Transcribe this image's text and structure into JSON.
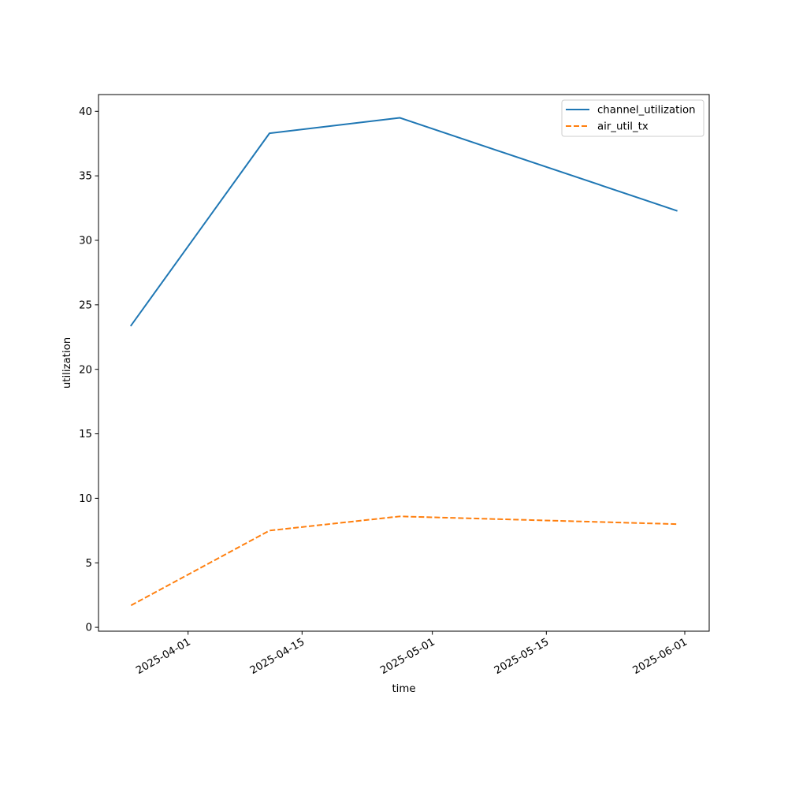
{
  "chart_data": {
    "type": "line",
    "title": "",
    "xlabel": "time",
    "ylabel": "utilization",
    "x_type": "date",
    "xlim": [
      "2025-03-21",
      "2025-06-04"
    ],
    "ylim": [
      -0.3,
      41.3
    ],
    "x_ticks": [
      "2025-04-01",
      "2025-04-15",
      "2025-05-01",
      "2025-05-15",
      "2025-06-01"
    ],
    "y_ticks": [
      0,
      5,
      10,
      15,
      20,
      25,
      30,
      35,
      40
    ],
    "x": [
      "2025-03-25",
      "2025-04-11",
      "2025-04-27",
      "2025-05-31"
    ],
    "series": [
      {
        "name": "channel_utilization",
        "values": [
          23.4,
          38.3,
          39.5,
          32.3
        ],
        "color": "#1f77b4",
        "style": "solid"
      },
      {
        "name": "air_util_tx",
        "values": [
          1.7,
          7.5,
          8.6,
          8.0
        ],
        "color": "#ff7f0e",
        "style": "dashed"
      }
    ],
    "legend": "top-right",
    "grid": false
  }
}
